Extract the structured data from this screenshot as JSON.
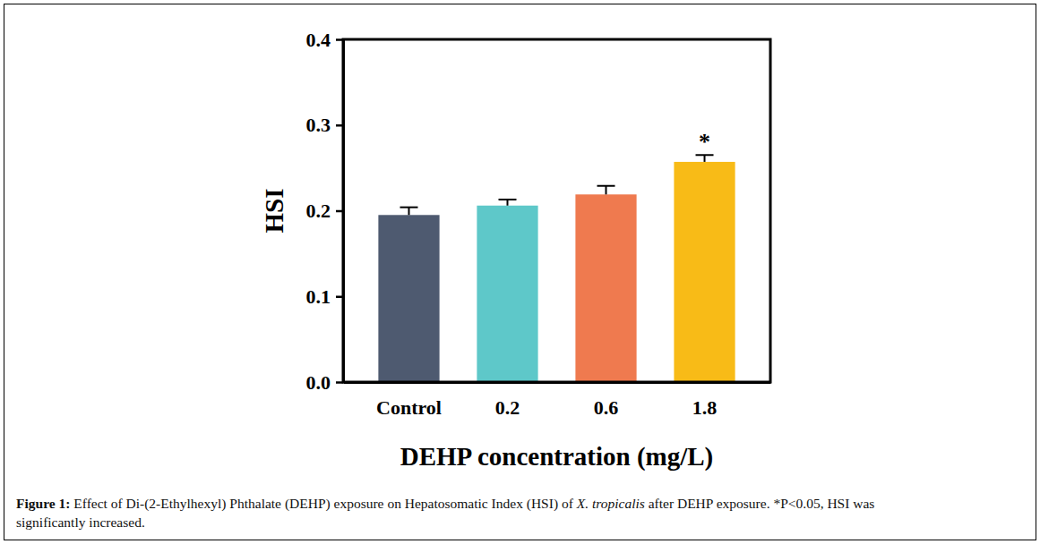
{
  "chart_data": {
    "type": "bar",
    "categories": [
      "Control",
      "0.2",
      "0.6",
      "1.8"
    ],
    "values": [
      0.195,
      0.206,
      0.219,
      0.257
    ],
    "errors": [
      0.009,
      0.007,
      0.01,
      0.008
    ],
    "colors": [
      "#4e5a70",
      "#5ec8c9",
      "#ef7a4f",
      "#f8bb17"
    ],
    "x_label": "DEHP concentration (mg/L)",
    "y_label": "HSI",
    "ylim": [
      0,
      0.4
    ],
    "yticks": [
      {
        "value": 0,
        "label": "0.0"
      },
      0.1,
      0.2,
      0.3,
      0.4
    ],
    "annotations": [
      {
        "text": "*",
        "category": "1.8"
      }
    ],
    "caption": [
      [
        "Figure 1:",
        " Effect of Di-(2-Ethylhexyl) Phthalate (DEHP) exposure on Hepatosomatic Index (HSI) of ",
        "X. tropicalis",
        " after DEHP exposure. *P<0.05, HSI was"
      ],
      [
        "significantly increased."
      ]
    ]
  }
}
